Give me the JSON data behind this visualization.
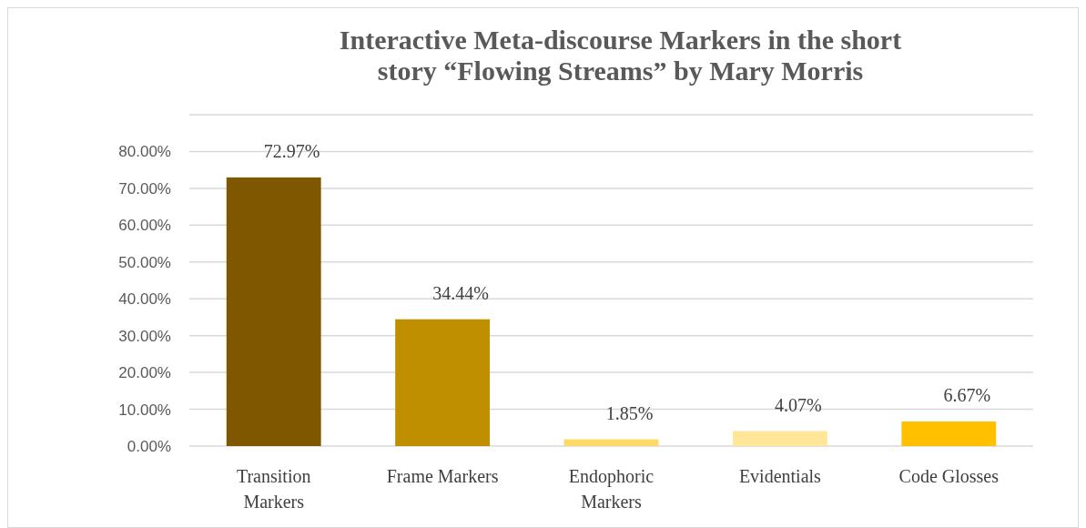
{
  "chart_data": {
    "type": "bar",
    "title": "Interactive Meta-discourse Markers in the short story “Flowing Streams” by Mary Morris",
    "categories": [
      "Transition Markers",
      "Frame Markers",
      "Endophoric Markers",
      "Evidentials",
      "Code Glosses"
    ],
    "values": [
      72.97,
      34.44,
      1.85,
      4.07,
      6.67
    ],
    "colors": [
      "#7f5700",
      "#bf8f00",
      "#ffd966",
      "#ffe699",
      "#ffc000"
    ],
    "value_labels": [
      "72.97%",
      "34.44%",
      "1.85%",
      "4.07%",
      "6.67%"
    ],
    "ylim": [
      0,
      90
    ],
    "yticks": [
      {
        "value": 0,
        "label": "0.00%"
      },
      {
        "value": 10,
        "label": "10.00%"
      },
      {
        "value": 20,
        "label": "20.00%"
      },
      {
        "value": 30,
        "label": "30.00%"
      },
      {
        "value": 40,
        "label": "40.00%"
      },
      {
        "value": 50,
        "label": "50.00%"
      },
      {
        "value": 60,
        "label": "60.00%"
      },
      {
        "value": 70,
        "label": "70.00%"
      },
      {
        "value": 80,
        "label": "80.00%"
      },
      {
        "value": 90,
        "label": null
      }
    ],
    "grid": "y"
  }
}
